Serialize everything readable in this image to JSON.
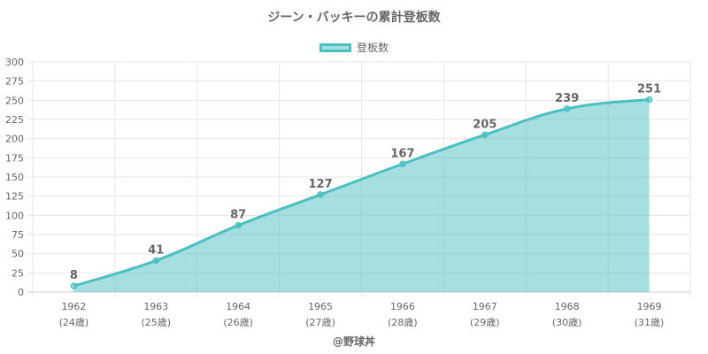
{
  "chart_data": {
    "type": "area",
    "title": "ジーン・バッキーの累計登板数",
    "categories": [
      "1962",
      "1963",
      "1964",
      "1965",
      "1966",
      "1967",
      "1968",
      "1969"
    ],
    "category_sublabels": [
      "(24歳)",
      "(25歳)",
      "(26歳)",
      "(27歳)",
      "(28歳)",
      "(29歳)",
      "(30歳)",
      "(31歳)"
    ],
    "series": [
      {
        "name": "登板数",
        "values": [
          8,
          41,
          87,
          127,
          167,
          205,
          239,
          251
        ]
      }
    ],
    "ylim": [
      0,
      300
    ],
    "yticks": [
      0,
      25,
      50,
      75,
      100,
      125,
      150,
      175,
      200,
      225,
      250,
      275,
      300
    ],
    "grid": true,
    "legend_position": "top-center",
    "colors": {
      "line": "#4bc0c0",
      "fill": "rgba(75,192,192,0.5)",
      "grid": "#e6e6e6",
      "text": "#666666"
    }
  },
  "credit": "@野球丼"
}
